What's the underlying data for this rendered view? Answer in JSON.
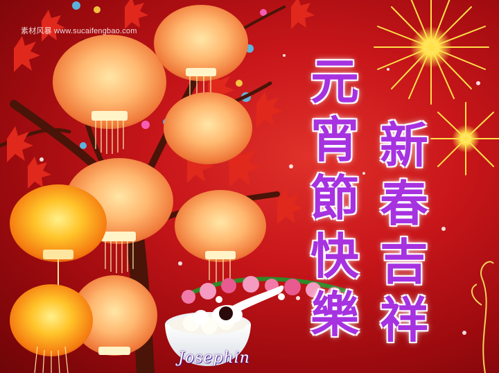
{
  "watermark": {
    "text": "素材风暴 www.sucaifengbao.com"
  },
  "greeting": {
    "left_column": [
      "元",
      "宵",
      "節",
      "快",
      "樂"
    ],
    "right_column": [
      "新",
      "春",
      "吉",
      "祥"
    ]
  },
  "signature": {
    "text": "Josephin"
  },
  "colors": {
    "background": "#c8161a",
    "text_fill": "#a632e0",
    "text_outline": "#ffffff",
    "lantern": "#f5a04a",
    "leaves": "#e0281c",
    "fireworks": "#ffe14a"
  },
  "illustration": {
    "elements": [
      "lantern-icon",
      "tree-branch-icon",
      "maple-leaf-icon",
      "firework-icon",
      "tangyuan-bowl-icon",
      "spoon-icon",
      "rose-icon",
      "bokeh-dot-icon"
    ]
  }
}
